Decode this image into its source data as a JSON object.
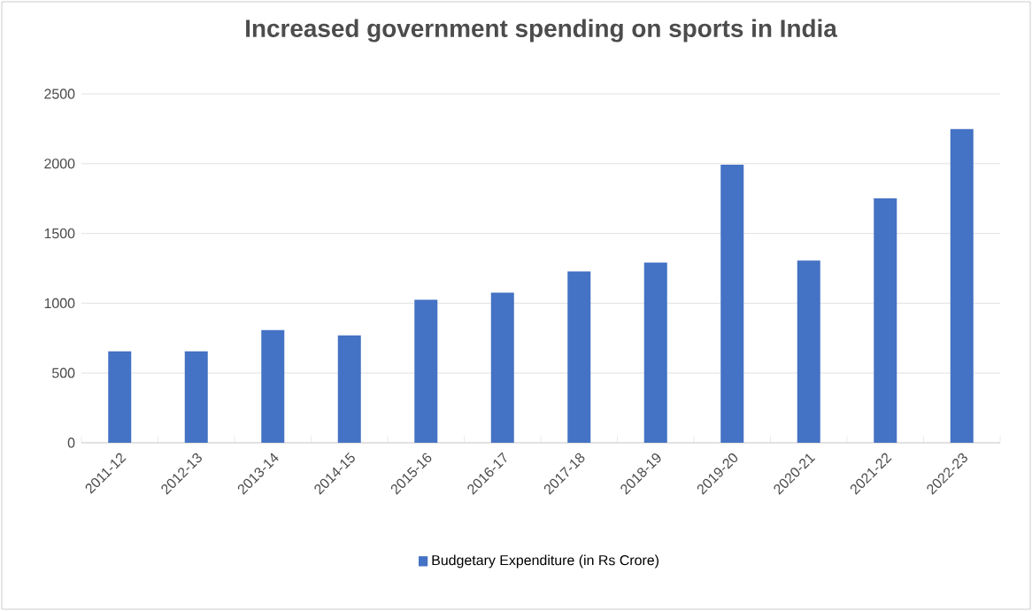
{
  "chart_data": {
    "type": "bar",
    "title": "Increased government spending on sports in India",
    "categories": [
      "2011-12",
      "2012-13",
      "2013-14",
      "2014-15",
      "2015-16",
      "2016-17",
      "2017-18",
      "2018-19",
      "2019-20",
      "2020-21",
      "2021-22",
      "2022-23"
    ],
    "series": [
      {
        "name": "Budgetary Expenditure (in Rs Crore)",
        "color": "#4472c4",
        "values": [
          655,
          655,
          808,
          769,
          1024,
          1075,
          1228,
          1292,
          1993,
          1305,
          1751,
          2248
        ]
      }
    ],
    "ylim": [
      0,
      2500
    ],
    "yticks": [
      0,
      500,
      1000,
      1500,
      2000,
      2500
    ],
    "grid": "y",
    "legend": "bottom"
  }
}
